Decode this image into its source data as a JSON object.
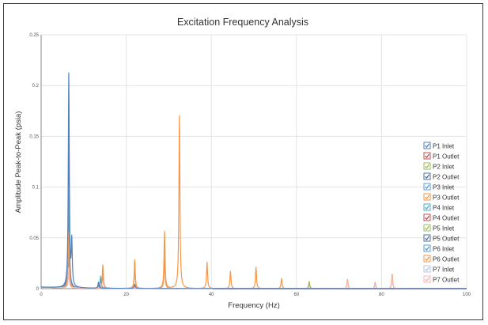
{
  "chart_data": {
    "type": "line",
    "title": "Excitation Frequency Analysis",
    "xlabel": "Frequency (Hz)",
    "ylabel": "Amplitude Peak-to-Peak (psia)",
    "xlim": [
      0,
      100
    ],
    "ylim": [
      0,
      0.25
    ],
    "xticks": [
      "0",
      "20",
      "40",
      "60",
      "80",
      "100"
    ],
    "yticks": [
      "0",
      "0.05",
      "0.1",
      "0.15",
      "0.2",
      "0.25"
    ],
    "grid": true,
    "legend_position": "right",
    "series": [
      {
        "name": "P1 Inlet",
        "color": "#4f81bd",
        "peaks": [
          [
            6.5,
            0.21
          ],
          [
            7.2,
            0.044
          ],
          [
            13.5,
            0.006
          ],
          [
            22,
            0.004
          ]
        ]
      },
      {
        "name": "P1 Outlet",
        "color": "#c0504d",
        "peaks": [
          [
            6.5,
            0.04
          ],
          [
            13.5,
            0.004
          ]
        ]
      },
      {
        "name": "P2 Inlet",
        "color": "#9bbb59",
        "peaks": [
          [
            6.5,
            0.03
          ],
          [
            63,
            0.007
          ]
        ]
      },
      {
        "name": "P2 Outlet",
        "color": "#4f6fa0",
        "peaks": [
          [
            6.5,
            0.135
          ],
          [
            13.5,
            0.005
          ]
        ]
      },
      {
        "name": "P3 Inlet",
        "color": "#5b9bd5",
        "peaks": [
          [
            6.5,
            0.1
          ],
          [
            14,
            0.01
          ]
        ]
      },
      {
        "name": "P3 Outlet",
        "color": "#f79646",
        "peaks": [
          [
            6.5,
            0.06
          ],
          [
            14.5,
            0.023
          ],
          [
            22,
            0.028
          ],
          [
            29,
            0.056
          ],
          [
            32.5,
            0.17
          ],
          [
            39,
            0.026
          ],
          [
            44.5,
            0.017
          ],
          [
            50.5,
            0.021
          ],
          [
            56.5,
            0.01
          ],
          [
            63,
            0.006
          ],
          [
            72,
            0.009
          ],
          [
            78.5,
            0.006
          ],
          [
            82.5,
            0.014
          ]
        ]
      },
      {
        "name": "P4 Inlet",
        "color": "#4bacc6",
        "peaks": [
          [
            6.5,
            0.06
          ],
          [
            14,
            0.012
          ]
        ]
      },
      {
        "name": "P4 Outlet",
        "color": "#c0504d",
        "peaks": [
          [
            6.5,
            0.03
          ],
          [
            22,
            0.004
          ]
        ]
      },
      {
        "name": "P5 Inlet",
        "color": "#9bbb59",
        "peaks": [
          [
            6.5,
            0.025
          ],
          [
            63,
            0.006
          ]
        ]
      },
      {
        "name": "P5 Outlet",
        "color": "#4f6fa0",
        "peaks": [
          [
            6.5,
            0.05
          ],
          [
            14,
            0.006
          ]
        ]
      },
      {
        "name": "P6 Inlet",
        "color": "#5b9bd5",
        "peaks": [
          [
            6.5,
            0.035
          ],
          [
            14,
            0.007
          ]
        ]
      },
      {
        "name": "P6 Outlet",
        "color": "#f79646",
        "peaks": [
          [
            6.5,
            0.055
          ],
          [
            14.5,
            0.015
          ],
          [
            22,
            0.02
          ],
          [
            29,
            0.03
          ]
        ]
      },
      {
        "name": "P7 Inlet",
        "color": "#b4c7e7",
        "peaks": [
          [
            6.5,
            0.02
          ],
          [
            14,
            0.005
          ]
        ]
      },
      {
        "name": "P7 Outlet",
        "color": "#f4b6b4",
        "peaks": [
          [
            6.5,
            0.02
          ],
          [
            72,
            0.008
          ],
          [
            78.5,
            0.005
          ],
          [
            82.5,
            0.012
          ]
        ]
      }
    ]
  }
}
